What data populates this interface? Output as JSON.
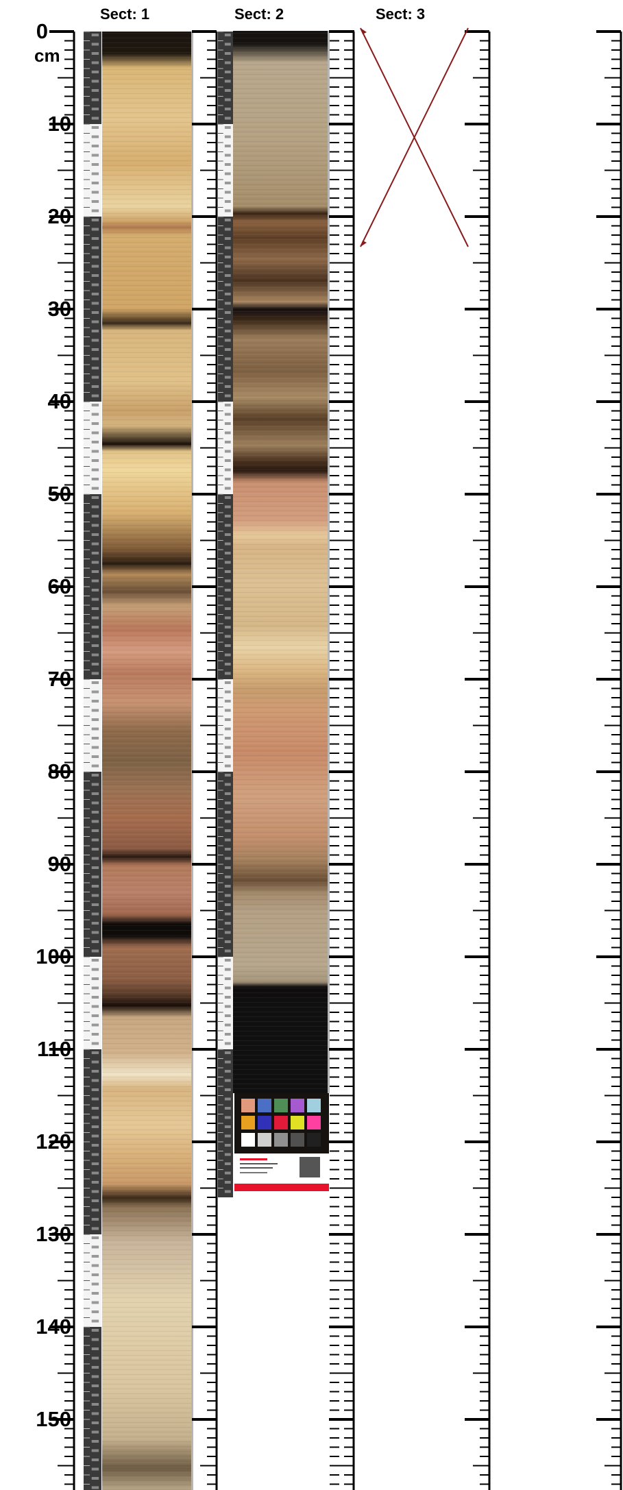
{
  "depth_axis": {
    "unit": "cm",
    "labels": [
      "0",
      "10",
      "20",
      "30",
      "40",
      "50",
      "60",
      "70",
      "80",
      "90",
      "100",
      "110",
      "120",
      "130",
      "140",
      "150"
    ]
  },
  "sections": [
    {
      "label": "Sect: 1",
      "length_cm": 158
    },
    {
      "label": "Sect: 2",
      "length_cm": 126
    },
    {
      "label": "Sect: 3",
      "length_cm": 0,
      "crossed_out": true
    }
  ],
  "colors": {
    "sediment_tan": "#d8b57e",
    "sediment_brown": "#8c6a45",
    "sediment_dark": "#2d2016",
    "sediment_pink": "#c48a6c",
    "cross_line": "#8b1a1a"
  }
}
